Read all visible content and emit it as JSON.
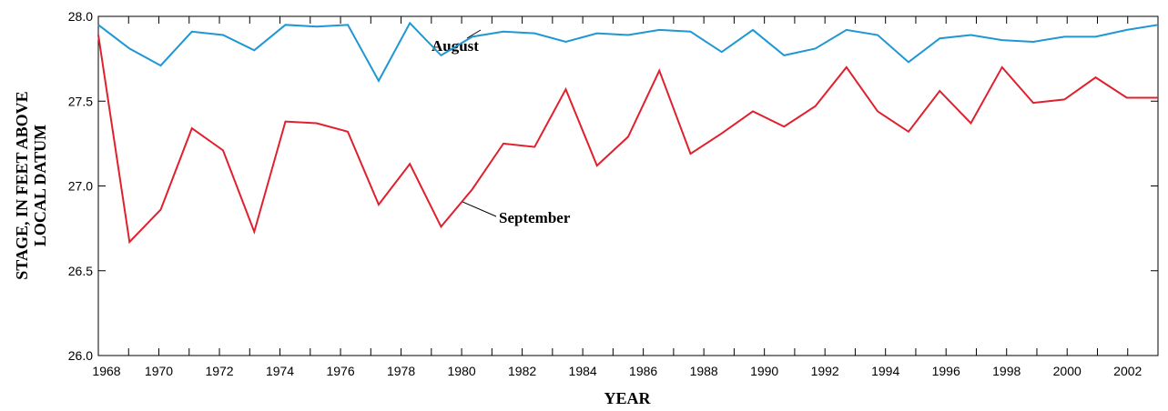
{
  "chart_data": {
    "type": "line",
    "y_label": [
      "STAGE, IN FEET ABOVE",
      "LOCAL DATUM"
    ],
    "x_label": "YEAR",
    "annotations": [
      "August",
      "September"
    ],
    "x": [
      1968.0,
      1969.03,
      1970.06,
      1971.09,
      1972.12,
      1973.15,
      1974.18,
      1975.21,
      1976.24,
      1977.26,
      1978.29,
      1979.32,
      1980.35,
      1981.38,
      1982.41,
      1983.44,
      1984.47,
      1985.5,
      1986.53,
      1987.56,
      1988.59,
      1989.62,
      1990.65,
      1991.68,
      1992.71,
      1993.74,
      1994.76,
      1995.79,
      1996.82,
      1997.85,
      1998.88,
      1999.91,
      2000.94,
      2001.97,
      2003.0
    ],
    "series": [
      {
        "name": "August",
        "color": "#1f97d4",
        "values": [
          27.95,
          27.81,
          27.71,
          27.91,
          27.89,
          27.8,
          27.95,
          27.94,
          27.95,
          27.62,
          27.96,
          27.77,
          27.88,
          27.91,
          27.9,
          27.85,
          27.9,
          27.89,
          27.92,
          27.91,
          27.79,
          27.92,
          27.77,
          27.81,
          27.92,
          27.89,
          27.73,
          27.87,
          27.89,
          27.86,
          27.85,
          27.88,
          27.88,
          27.92,
          27.95
        ]
      },
      {
        "name": "September",
        "color": "#e0202e",
        "values": [
          27.89,
          26.67,
          26.86,
          27.34,
          27.21,
          26.73,
          27.38,
          27.37,
          27.32,
          26.89,
          27.13,
          26.76,
          26.98,
          27.25,
          27.23,
          27.57,
          27.12,
          27.29,
          27.68,
          27.19,
          27.31,
          27.44,
          27.35,
          27.47,
          27.7,
          27.44,
          27.32,
          27.56,
          27.37,
          27.7,
          27.49,
          27.51,
          27.64,
          27.52,
          27.52
        ]
      }
    ],
    "xlim": [
      1968,
      2003
    ],
    "xticks": [
      1968,
      1970,
      1972,
      1974,
      1976,
      1978,
      1980,
      1982,
      1984,
      1986,
      1988,
      1990,
      1992,
      1994,
      1996,
      1998,
      2000,
      2002
    ],
    "xminorticks": [
      1969,
      1971,
      1973,
      1975,
      1977,
      1979,
      1981,
      1983,
      1985,
      1987,
      1989,
      1991,
      1993,
      1995,
      1997,
      1999,
      2001
    ],
    "ylim": [
      26.0,
      28.0
    ],
    "yticks": [
      {
        "value": 26.0,
        "label": "26.0"
      },
      {
        "value": 26.5,
        "label": "26.5"
      },
      {
        "value": 27.0,
        "label": "27.0"
      },
      {
        "value": 27.5,
        "label": "27.5"
      },
      {
        "value": 28.0,
        "label": "28.0"
      }
    ],
    "grid": false
  }
}
